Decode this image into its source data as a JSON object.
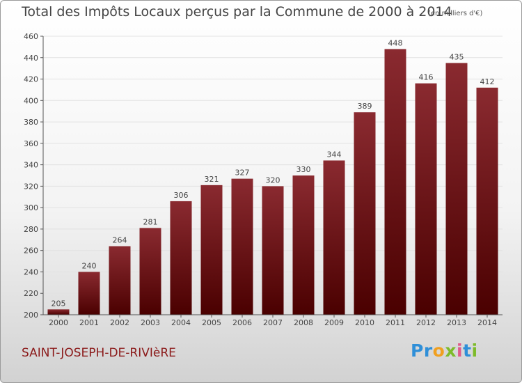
{
  "header": {
    "title": "Total des Impôts Locaux perçus par la Commune de 2000 à 2014",
    "subtitle": "(en milliers d'€)"
  },
  "footer": {
    "commune": "SAINT-JOSEPH-DE-RIVIèRE",
    "brand": "Proxiti"
  },
  "colors": {
    "bar_top": "#8a2a30",
    "bar_bottom": "#4a0000",
    "axis": "#555555",
    "grid": "#e2e2e2",
    "text": "#444444",
    "commune": "#8b1a1a",
    "brand_letters": [
      "#2f8fd8",
      "#2f8fd8",
      "#f0a020",
      "#7dbb2a",
      "#e05a8a",
      "#2f8fd8",
      "#7dbb2a"
    ]
  },
  "chart_data": {
    "type": "bar",
    "title": "Total des Impôts Locaux perçus par la Commune de 2000 à 2014",
    "xlabel": "",
    "ylabel": "",
    "categories": [
      "2000",
      "2001",
      "2002",
      "2003",
      "2004",
      "2005",
      "2006",
      "2007",
      "2008",
      "2009",
      "2010",
      "2011",
      "2012",
      "2013",
      "2014"
    ],
    "values": [
      205,
      240,
      264,
      281,
      306,
      321,
      327,
      320,
      330,
      344,
      389,
      448,
      416,
      435,
      412
    ],
    "ylim": [
      200,
      460
    ],
    "yticks": [
      200,
      220,
      240,
      260,
      280,
      300,
      320,
      340,
      360,
      380,
      400,
      420,
      440,
      460
    ],
    "grid": true
  }
}
